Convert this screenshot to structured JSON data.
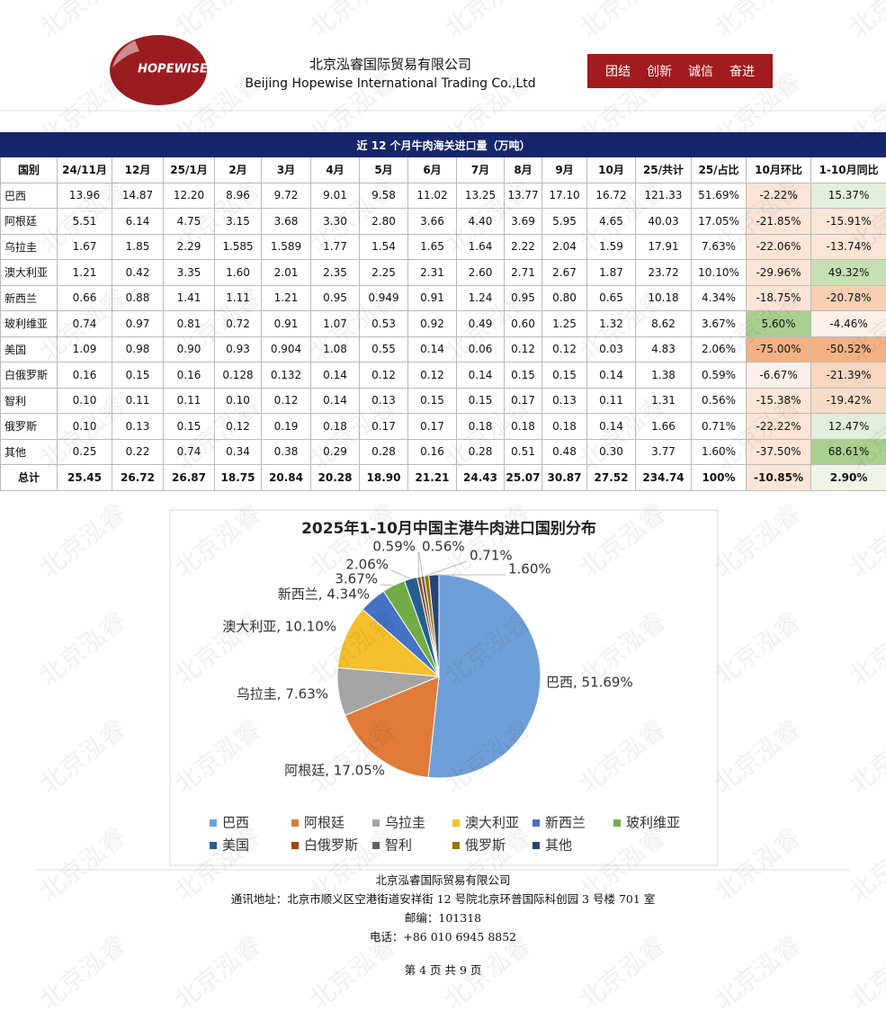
{
  "header": {
    "logo_text": "HOPEWISE",
    "company_cn": "北京泓睿国际贸易有限公司",
    "company_en": "Beijing Hopewise International Trading Co.,Ltd",
    "slogans": [
      "团结",
      "创新",
      "诚信",
      "奋进"
    ]
  },
  "watermark": "北京泓睿",
  "table": {
    "title": "近 12 个月牛肉海关进口量（万吨）",
    "columns": [
      "国别",
      "24/11月",
      "12月",
      "25/1月",
      "2月",
      "3月",
      "4月",
      "5月",
      "6月",
      "7月",
      "8月",
      "9月",
      "10月",
      "25/共计",
      "25/占比",
      "10月环比",
      "1-10月同比"
    ],
    "rows": [
      [
        "巴西",
        "13.96",
        "14.87",
        "12.20",
        "8.96",
        "9.72",
        "9.01",
        "9.58",
        "11.02",
        "13.25",
        "13.77",
        "17.10",
        "16.72",
        "121.33",
        "51.69%",
        "-2.22%",
        "15.37%"
      ],
      [
        "阿根廷",
        "5.51",
        "6.14",
        "4.75",
        "3.15",
        "3.68",
        "3.30",
        "2.80",
        "3.66",
        "4.40",
        "3.69",
        "5.95",
        "4.65",
        "40.03",
        "17.05%",
        "-21.85%",
        "-15.91%"
      ],
      [
        "乌拉圭",
        "1.67",
        "1.85",
        "2.29",
        "1.585",
        "1.589",
        "1.77",
        "1.54",
        "1.65",
        "1.64",
        "2.22",
        "2.04",
        "1.59",
        "17.91",
        "7.63%",
        "-22.06%",
        "-13.74%"
      ],
      [
        "澳大利亚",
        "1.21",
        "0.42",
        "3.35",
        "1.60",
        "2.01",
        "2.35",
        "2.25",
        "2.31",
        "2.60",
        "2.71",
        "2.67",
        "1.87",
        "23.72",
        "10.10%",
        "-29.96%",
        "49.32%"
      ],
      [
        "新西兰",
        "0.66",
        "0.88",
        "1.41",
        "1.11",
        "1.21",
        "0.95",
        "0.949",
        "0.91",
        "1.24",
        "0.95",
        "0.80",
        "0.65",
        "10.18",
        "4.34%",
        "-18.75%",
        "-20.78%"
      ],
      [
        "玻利维亚",
        "0.74",
        "0.97",
        "0.81",
        "0.72",
        "0.91",
        "1.07",
        "0.53",
        "0.92",
        "0.49",
        "0.60",
        "1.25",
        "1.32",
        "8.62",
        "3.67%",
        "5.60%",
        "-4.46%"
      ],
      [
        "美国",
        "1.09",
        "0.98",
        "0.90",
        "0.93",
        "0.904",
        "1.08",
        "0.55",
        "0.14",
        "0.06",
        "0.12",
        "0.12",
        "0.03",
        "4.83",
        "2.06%",
        "-75.00%",
        "-50.52%"
      ],
      [
        "白俄罗斯",
        "0.16",
        "0.15",
        "0.16",
        "0.128",
        "0.132",
        "0.14",
        "0.12",
        "0.12",
        "0.14",
        "0.15",
        "0.15",
        "0.14",
        "1.38",
        "0.59%",
        "-6.67%",
        "-21.39%"
      ],
      [
        "智利",
        "0.10",
        "0.11",
        "0.11",
        "0.10",
        "0.12",
        "0.14",
        "0.13",
        "0.15",
        "0.15",
        "0.17",
        "0.13",
        "0.11",
        "1.31",
        "0.56%",
        "-15.38%",
        "-19.42%"
      ],
      [
        "俄罗斯",
        "0.10",
        "0.13",
        "0.15",
        "0.12",
        "0.19",
        "0.18",
        "0.17",
        "0.17",
        "0.18",
        "0.18",
        "0.18",
        "0.14",
        "1.66",
        "0.71%",
        "-22.22%",
        "12.47%"
      ],
      [
        "其他",
        "0.25",
        "0.22",
        "0.74",
        "0.34",
        "0.38",
        "0.29",
        "0.28",
        "0.16",
        "0.28",
        "0.51",
        "0.48",
        "0.30",
        "3.77",
        "1.60%",
        "-37.50%",
        "68.61%"
      ],
      [
        "总计",
        "25.45",
        "26.72",
        "26.87",
        "18.75",
        "20.84",
        "20.28",
        "18.90",
        "21.21",
        "24.43",
        "25.07",
        "30.87",
        "27.52",
        "234.74",
        "100%",
        "-10.85%",
        "2.90%"
      ]
    ]
  },
  "chart_data": {
    "type": "pie",
    "title": "2025年1-10月中国主港牛肉进口国别分布",
    "categories": [
      "巴西",
      "阿根廷",
      "乌拉圭",
      "澳大利亚",
      "新西兰",
      "玻利维亚",
      "美国",
      "白俄罗斯",
      "智利",
      "俄罗斯",
      "其他"
    ],
    "values": [
      51.69,
      17.05,
      7.63,
      10.1,
      4.34,
      3.67,
      2.06,
      0.59,
      0.56,
      0.71,
      1.6
    ],
    "value_labels": [
      "巴西, 51.69%",
      "阿根廷, 17.05%",
      "乌拉圭, 7.63%",
      "澳大利亚, 10.10%",
      "新西兰, 4.34%",
      "3.67%",
      "2.06%",
      "0.59%",
      "0.56%",
      "0.71%",
      "1.60%"
    ],
    "colors": [
      "#6f9fd8",
      "#e07b39",
      "#a5a5a5",
      "#f4c02b",
      "#4472c4",
      "#70ad47",
      "#255e91",
      "#9e480e",
      "#636363",
      "#997300",
      "#264478"
    ],
    "legend": "bottom"
  },
  "footer": {
    "lines": [
      "北京泓睿国际贸易有限公司",
      "通讯地址：北京市顺义区空港街道安祥街 12 号院北京环普国际科创园 3 号楼 701 室",
      "邮编：101318",
      "电话：+86 010 6945 8852"
    ],
    "page": "第 4 页 共 9 页"
  }
}
